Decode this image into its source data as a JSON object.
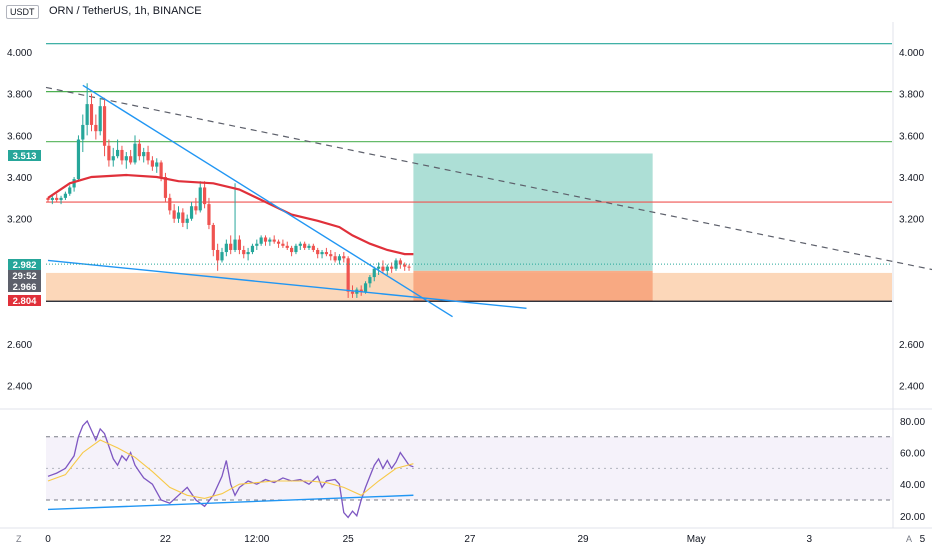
{
  "header": {
    "currency": "USDT",
    "title": "ORN / TetherUS, 1h, BINANCE"
  },
  "footer": {
    "left_label": "Z",
    "right_label": "A"
  },
  "colors": {
    "up": "#26a69a",
    "down": "#ef5350",
    "ema": "#e0303a",
    "trendline": "#2196f3",
    "rsi": "#7e57c2",
    "rsi_ma": "#f7c948",
    "profit_zone": "#9fd9cf",
    "loss_zone": "#f7a47c",
    "support_zone": "#fcd3b1"
  },
  "chart_data": [
    {
      "type": "candlestick",
      "title": "ORN / TetherUS, 1h, BINANCE",
      "ylim": [
        2.3,
        4.1
      ],
      "xlim": [
        0,
        207
      ],
      "y_ticks": [
        {
          "value": 4.0,
          "label": "4.000"
        },
        {
          "value": 3.8,
          "label": "3.800"
        },
        {
          "value": 3.6,
          "label": "3.600"
        },
        {
          "value": 3.4,
          "label": "3.400"
        },
        {
          "value": 3.2,
          "label": "3.200"
        },
        {
          "value": 2.6,
          "label": "2.600"
        },
        {
          "value": 2.4,
          "label": "2.400"
        }
      ],
      "x_ticks": [
        {
          "x": 0,
          "label": "0"
        },
        {
          "x": 27,
          "label": "22"
        },
        {
          "x": 48,
          "label": "12:00"
        },
        {
          "x": 69,
          "label": "25"
        },
        {
          "x": 97,
          "label": "27"
        },
        {
          "x": 123,
          "label": "29"
        },
        {
          "x": 149,
          "label": "May"
        },
        {
          "x": 175,
          "label": "3"
        },
        {
          "x": 201,
          "label": "5"
        }
      ],
      "price_labels": [
        {
          "value": 3.513,
          "text": "3.513",
          "color": "#26a69a"
        },
        {
          "value": 2.982,
          "text": "2.982",
          "color": "#26a69a"
        },
        {
          "value": 2.966,
          "text": "2.966",
          "color": "#5d606b"
        },
        {
          "value": 2.966,
          "text": "29:52",
          "color": "#5d606b"
        },
        {
          "value": 2.804,
          "text": "2.804",
          "color": "#e0303a"
        }
      ],
      "horizontal_levels": [
        {
          "value": 4.04,
          "color": "#26a69a"
        },
        {
          "value": 3.81,
          "color": "#4caf50"
        },
        {
          "value": 3.57,
          "color": "#66bb6a"
        },
        {
          "value": 3.28,
          "color": "#ef5350"
        },
        {
          "value": 2.804,
          "color": "#131722"
        }
      ],
      "support_zone": {
        "from": 2.804,
        "to": 2.94
      },
      "position": {
        "x_start": 84,
        "x_end": 139,
        "entry": 2.95,
        "target": 3.513,
        "stop": 2.804
      },
      "dashed_trendline": [
        [
          0,
          3.83
        ],
        [
          207,
          2.94
        ]
      ],
      "trendlines": [
        {
          "from": [
            8,
            3.84
          ],
          "to": [
            93,
            2.73
          ]
        },
        {
          "from": [
            0,
            3.0
          ],
          "to": [
            110,
            2.77
          ]
        }
      ],
      "ema": [
        [
          0,
          3.3
        ],
        [
          5,
          3.37
        ],
        [
          10,
          3.4
        ],
        [
          18,
          3.41
        ],
        [
          25,
          3.4
        ],
        [
          30,
          3.38
        ],
        [
          38,
          3.37
        ],
        [
          44,
          3.34
        ],
        [
          50,
          3.28
        ],
        [
          56,
          3.22
        ],
        [
          62,
          3.19
        ],
        [
          67,
          3.16
        ],
        [
          70,
          3.12
        ],
        [
          74,
          3.08
        ],
        [
          78,
          3.05
        ],
        [
          82,
          3.03
        ],
        [
          84,
          3.03
        ]
      ],
      "ohlc": [
        [
          3.3,
          3.3,
          3.28,
          3.29
        ],
        [
          3.29,
          3.31,
          3.27,
          3.3
        ],
        [
          3.3,
          3.32,
          3.28,
          3.29
        ],
        [
          3.29,
          3.31,
          3.27,
          3.3
        ],
        [
          3.3,
          3.33,
          3.29,
          3.32
        ],
        [
          3.32,
          3.36,
          3.31,
          3.35
        ],
        [
          3.35,
          3.4,
          3.33,
          3.39
        ],
        [
          3.39,
          3.6,
          3.38,
          3.58
        ],
        [
          3.58,
          3.7,
          3.52,
          3.65
        ],
        [
          3.65,
          3.85,
          3.6,
          3.75
        ],
        [
          3.75,
          3.8,
          3.62,
          3.65
        ],
        [
          3.65,
          3.7,
          3.58,
          3.62
        ],
        [
          3.62,
          3.78,
          3.6,
          3.74
        ],
        [
          3.74,
          3.78,
          3.5,
          3.55
        ],
        [
          3.55,
          3.58,
          3.45,
          3.48
        ],
        [
          3.48,
          3.54,
          3.45,
          3.5
        ],
        [
          3.5,
          3.58,
          3.49,
          3.53
        ],
        [
          3.53,
          3.55,
          3.46,
          3.48
        ],
        [
          3.48,
          3.52,
          3.44,
          3.5
        ],
        [
          3.5,
          3.53,
          3.46,
          3.47
        ],
        [
          3.47,
          3.6,
          3.46,
          3.56
        ],
        [
          3.56,
          3.58,
          3.48,
          3.5
        ],
        [
          3.5,
          3.54,
          3.47,
          3.52
        ],
        [
          3.52,
          3.55,
          3.46,
          3.48
        ],
        [
          3.48,
          3.5,
          3.43,
          3.45
        ],
        [
          3.45,
          3.49,
          3.42,
          3.47
        ],
        [
          3.47,
          3.48,
          3.38,
          3.4
        ],
        [
          3.4,
          3.42,
          3.28,
          3.3
        ],
        [
          3.3,
          3.32,
          3.22,
          3.24
        ],
        [
          3.24,
          3.27,
          3.18,
          3.2
        ],
        [
          3.2,
          3.26,
          3.18,
          3.23
        ],
        [
          3.23,
          3.25,
          3.16,
          3.18
        ],
        [
          3.18,
          3.22,
          3.15,
          3.2
        ],
        [
          3.2,
          3.28,
          3.19,
          3.26
        ],
        [
          3.26,
          3.3,
          3.22,
          3.24
        ],
        [
          3.24,
          3.38,
          3.23,
          3.35
        ],
        [
          3.35,
          3.38,
          3.25,
          3.27
        ],
        [
          3.27,
          3.3,
          3.15,
          3.17
        ],
        [
          3.17,
          3.18,
          3.02,
          3.05
        ],
        [
          3.05,
          3.08,
          2.95,
          3.0
        ],
        [
          3.0,
          3.06,
          2.99,
          3.04
        ],
        [
          3.04,
          3.1,
          3.02,
          3.08
        ],
        [
          3.08,
          3.12,
          3.03,
          3.05
        ],
        [
          3.05,
          3.37,
          3.04,
          3.1
        ],
        [
          3.1,
          3.12,
          3.03,
          3.05
        ],
        [
          3.05,
          3.07,
          3.01,
          3.03
        ],
        [
          3.03,
          3.06,
          3.0,
          3.04
        ],
        [
          3.04,
          3.08,
          3.03,
          3.07
        ],
        [
          3.07,
          3.1,
          3.05,
          3.08
        ],
        [
          3.08,
          3.12,
          3.07,
          3.11
        ],
        [
          3.11,
          3.12,
          3.07,
          3.09
        ],
        [
          3.09,
          3.11,
          3.07,
          3.1
        ],
        [
          3.1,
          3.12,
          3.08,
          3.09
        ],
        [
          3.09,
          3.1,
          3.06,
          3.08
        ],
        [
          3.08,
          3.1,
          3.06,
          3.07
        ],
        [
          3.07,
          3.09,
          3.05,
          3.06
        ],
        [
          3.06,
          3.07,
          3.02,
          3.04
        ],
        [
          3.04,
          3.08,
          3.03,
          3.07
        ],
        [
          3.07,
          3.09,
          3.05,
          3.08
        ],
        [
          3.08,
          3.09,
          3.05,
          3.06
        ],
        [
          3.06,
          3.08,
          3.05,
          3.07
        ],
        [
          3.07,
          3.08,
          3.04,
          3.05
        ],
        [
          3.05,
          3.06,
          3.01,
          3.03
        ],
        [
          3.03,
          3.05,
          3.01,
          3.04
        ],
        [
          3.04,
          3.06,
          3.02,
          3.03
        ],
        [
          3.03,
          3.05,
          3.0,
          3.02
        ],
        [
          3.02,
          3.04,
          2.99,
          3.0
        ],
        [
          3.0,
          3.03,
          2.98,
          3.02
        ],
        [
          3.02,
          3.04,
          2.99,
          3.01
        ],
        [
          3.01,
          3.02,
          2.82,
          2.85
        ],
        [
          2.85,
          2.88,
          2.82,
          2.84
        ],
        [
          2.84,
          2.87,
          2.82,
          2.86
        ],
        [
          2.86,
          2.88,
          2.83,
          2.85
        ],
        [
          2.85,
          2.9,
          2.84,
          2.89
        ],
        [
          2.89,
          2.93,
          2.87,
          2.92
        ],
        [
          2.92,
          2.97,
          2.9,
          2.96
        ],
        [
          2.96,
          2.99,
          2.93,
          2.97
        ],
        [
          2.97,
          3.0,
          2.94,
          2.95
        ],
        [
          2.95,
          2.98,
          2.93,
          2.97
        ],
        [
          2.97,
          2.99,
          2.94,
          2.96
        ],
        [
          2.96,
          3.01,
          2.95,
          3.0
        ],
        [
          3.0,
          3.01,
          2.96,
          2.98
        ],
        [
          2.98,
          2.99,
          2.95,
          2.97
        ],
        [
          2.97,
          2.98,
          2.95,
          2.966
        ]
      ]
    },
    {
      "type": "line",
      "name": "RSI",
      "ylim": [
        15,
        88
      ],
      "y_ticks": [
        {
          "value": 80,
          "label": "80.00"
        },
        {
          "value": 60,
          "label": "60.00"
        },
        {
          "value": 40,
          "label": "40.00"
        },
        {
          "value": 20,
          "label": "20.00"
        }
      ],
      "band": {
        "upper": 70,
        "lower": 30
      },
      "midline": 50,
      "rsi": [
        [
          0,
          45
        ],
        [
          2,
          47
        ],
        [
          4,
          50
        ],
        [
          6,
          58
        ],
        [
          7,
          70
        ],
        [
          8,
          77
        ],
        [
          9,
          80
        ],
        [
          10,
          74
        ],
        [
          11,
          68
        ],
        [
          12,
          75
        ],
        [
          13,
          72
        ],
        [
          14,
          64
        ],
        [
          15,
          56
        ],
        [
          16,
          52
        ],
        [
          17,
          58
        ],
        [
          18,
          55
        ],
        [
          19,
          60
        ],
        [
          20,
          52
        ],
        [
          21,
          48
        ],
        [
          22,
          44
        ],
        [
          24,
          40
        ],
        [
          26,
          30
        ],
        [
          28,
          28
        ],
        [
          30,
          33
        ],
        [
          32,
          38
        ],
        [
          34,
          30
        ],
        [
          36,
          26
        ],
        [
          38,
          33
        ],
        [
          40,
          45
        ],
        [
          41,
          55
        ],
        [
          42,
          40
        ],
        [
          43,
          33
        ],
        [
          44,
          38
        ],
        [
          46,
          42
        ],
        [
          48,
          40
        ],
        [
          50,
          43
        ],
        [
          52,
          41
        ],
        [
          54,
          44
        ],
        [
          56,
          42
        ],
        [
          58,
          43
        ],
        [
          60,
          40
        ],
        [
          62,
          45
        ],
        [
          63,
          38
        ],
        [
          64,
          42
        ],
        [
          66,
          43
        ],
        [
          67,
          40
        ],
        [
          68,
          22
        ],
        [
          69,
          19
        ],
        [
          70,
          23
        ],
        [
          71,
          20
        ],
        [
          72,
          30
        ],
        [
          73,
          38
        ],
        [
          74,
          45
        ],
        [
          75,
          52
        ],
        [
          76,
          56
        ],
        [
          77,
          50
        ],
        [
          78,
          55
        ],
        [
          79,
          50
        ],
        [
          80,
          54
        ],
        [
          81,
          60
        ],
        [
          82,
          56
        ],
        [
          83,
          52
        ],
        [
          84,
          51
        ]
      ],
      "rsi_ma": [
        [
          0,
          42
        ],
        [
          4,
          46
        ],
        [
          8,
          60
        ],
        [
          12,
          68
        ],
        [
          16,
          63
        ],
        [
          20,
          57
        ],
        [
          24,
          48
        ],
        [
          28,
          38
        ],
        [
          32,
          33
        ],
        [
          36,
          31
        ],
        [
          40,
          34
        ],
        [
          44,
          40
        ],
        [
          48,
          41
        ],
        [
          52,
          42
        ],
        [
          56,
          42
        ],
        [
          60,
          42
        ],
        [
          64,
          41
        ],
        [
          68,
          38
        ],
        [
          72,
          33
        ],
        [
          76,
          42
        ],
        [
          80,
          50
        ],
        [
          84,
          53
        ]
      ],
      "trendline": {
        "from": [
          0,
          24
        ],
        "to": [
          84,
          33
        ]
      }
    }
  ]
}
